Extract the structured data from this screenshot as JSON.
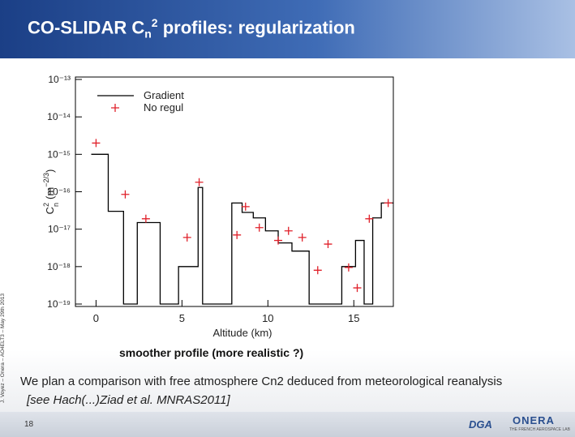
{
  "slide": {
    "title": {
      "prefix": "CO-SLIDAR C",
      "sub": "n",
      "sup": "2",
      "suffix": " profiles: regularization"
    },
    "side_note": "J. Voyez – Onera – AO4ELT3 – May 29th 2013",
    "caption": "smoother profile (more realistic ?)",
    "body": "We plan a comparison with free atmosphere Cn2 deduced from meteorological reanalysis",
    "reference": "[see Hach(...)Ziad et al. MNRAS2011]",
    "page_number": "18",
    "logo_left": "DGA",
    "logo_right": "ONERA",
    "logo_right_tagline": "THE FRENCH AEROSPACE LAB"
  },
  "chart_data": {
    "type": "line",
    "xlabel": "Altitude (km)",
    "ylabel": {
      "base": "C",
      "sub": "n",
      "sup": "2",
      "unit": "(m",
      "unit_sup": "−2/3",
      "close": ")"
    },
    "xlim": [
      -1.2,
      17.3
    ],
    "ylim": [
      1e-19,
      1e-13
    ],
    "yscale": "log",
    "xticks": [
      0,
      5,
      10,
      15
    ],
    "yticks": [
      {
        "value": 1e-13,
        "label": "10⁻¹³"
      },
      {
        "value": 1e-14,
        "label": "10⁻¹⁴"
      },
      {
        "value": 1e-15,
        "label": "10⁻¹⁵"
      },
      {
        "value": 1e-16,
        "label": "10⁻¹⁶"
      },
      {
        "value": 1e-17,
        "label": "10⁻¹⁷"
      },
      {
        "value": 1e-18,
        "label": "10⁻¹⁸"
      },
      {
        "value": 1e-19,
        "label": "10⁻¹⁹"
      }
    ],
    "legend": "top-left",
    "series": [
      {
        "name": "Gradient",
        "color": "#000000",
        "style": "line",
        "x": [
          -0.28,
          0.71,
          0.71,
          1.6,
          1.6,
          2.4,
          2.4,
          3.73,
          3.73,
          4.8,
          4.8,
          5.94,
          5.94,
          6.2,
          6.2,
          7.9,
          7.9,
          8.5,
          8.5,
          9.15,
          9.15,
          9.86,
          9.86,
          10.6,
          10.6,
          11.4,
          11.4,
          12.4,
          12.4,
          14.3,
          14.3,
          15.1,
          15.1,
          15.6,
          15.6,
          16.1,
          16.1,
          16.6,
          16.6,
          17.3
        ],
        "values": [
          1e-15,
          1e-15,
          3e-17,
          3e-17,
          1e-19,
          1e-19,
          1.5e-17,
          1.5e-17,
          1e-19,
          1e-19,
          1e-18,
          1e-18,
          1.3e-16,
          1.3e-16,
          1e-19,
          1e-19,
          5e-17,
          5e-17,
          2.8e-17,
          2.8e-17,
          2e-17,
          2e-17,
          9e-18,
          9e-18,
          4.3e-18,
          4.3e-18,
          2.6e-18,
          2.6e-18,
          1e-19,
          1e-19,
          1e-18,
          1e-18,
          5e-18,
          5e-18,
          1e-19,
          1e-19,
          2e-17,
          2e-17,
          5e-17,
          5e-17
        ]
      },
      {
        "name": "No regul",
        "color": "#e0202a",
        "style": "plus",
        "x": [
          0,
          1.7,
          2.9,
          5.3,
          6.0,
          8.2,
          8.7,
          9.5,
          10.6,
          11.2,
          12.0,
          12.9,
          13.5,
          14.7,
          15.2,
          15.9,
          17.0
        ],
        "values": [
          2e-15,
          8.5e-17,
          1.9e-17,
          6e-18,
          1.8e-16,
          7e-18,
          4e-17,
          1.1e-17,
          5e-18,
          9e-18,
          6e-18,
          8e-19,
          4e-18,
          9.5e-19,
          2.7e-19,
          1.9e-17,
          5e-17
        ]
      }
    ]
  }
}
